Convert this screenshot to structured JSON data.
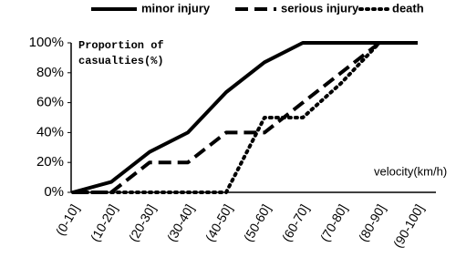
{
  "chart_data": {
    "type": "line",
    "ylabel": [
      "Proportion of",
      "casualties(%)"
    ],
    "xlabel": "velocity(km/h)",
    "categories": [
      "(0-10]",
      "(10-20]",
      "(20-30]",
      "(30-40]",
      "(40-50]",
      "(50-60]",
      "(60-70]",
      "(70-80]",
      "(80-90]",
      "(90-100]"
    ],
    "series": [
      {
        "name": "minor injury",
        "color": "#000000",
        "dash": "solid",
        "values": [
          0,
          7,
          27,
          40,
          67,
          87,
          100,
          100,
          100,
          100
        ]
      },
      {
        "name": "serious injury",
        "color": "#000000",
        "dash": "dashed",
        "values": [
          0,
          0,
          20,
          20,
          40,
          40,
          60,
          80,
          100,
          100
        ]
      },
      {
        "name": "death",
        "color": "#000000",
        "dash": "dotted",
        "values": [
          0,
          0,
          0,
          0,
          0,
          50,
          50,
          73,
          100,
          100
        ]
      }
    ],
    "ylim": [
      0,
      100
    ],
    "yticks": [
      {
        "value": 0,
        "label": "0%"
      },
      {
        "value": 20,
        "label": "20%"
      },
      {
        "value": 40,
        "label": "40%"
      },
      {
        "value": 60,
        "label": "60%"
      },
      {
        "value": 80,
        "label": "80%"
      },
      {
        "value": 100,
        "label": "100%"
      }
    ],
    "grid": false,
    "legend": "top"
  }
}
